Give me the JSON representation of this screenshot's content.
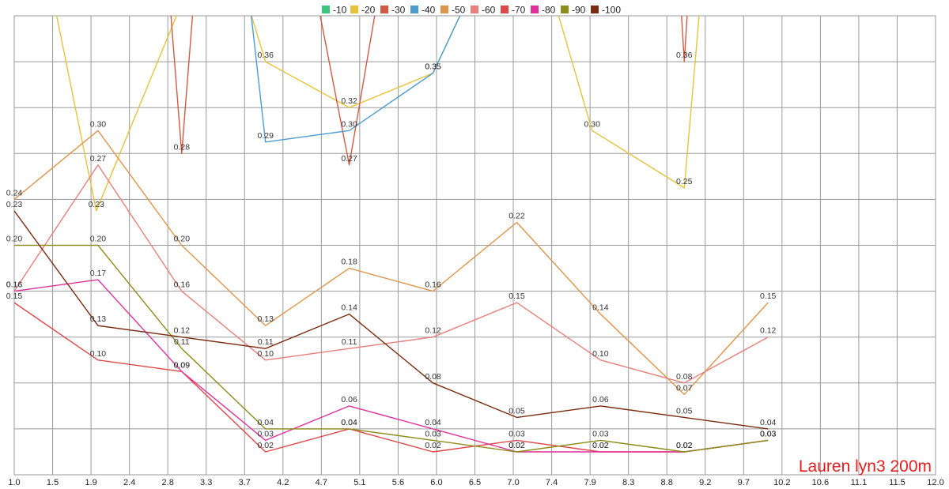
{
  "chart_data": {
    "type": "line",
    "annotation": "Lauren lyn3 200m",
    "x_ticks": [
      "1.0",
      "1.5",
      "1.9",
      "2.4",
      "2.8",
      "3.3",
      "3.7",
      "4.2",
      "4.7",
      "5.1",
      "5.6",
      "6.0",
      "6.5",
      "7.0",
      "7.4",
      "7.9",
      "8.3",
      "8.8",
      "9.2",
      "9.7",
      "10.2",
      "10.6",
      "11.1",
      "11.5",
      "12.0"
    ],
    "xlim": [
      1.0,
      12.0
    ],
    "ylim": [
      0.0,
      0.4
    ],
    "grid": true,
    "legend_position": "top",
    "series": [
      {
        "name": "-10",
        "color": "#3cc47c",
        "x": [],
        "y": [],
        "labels": []
      },
      {
        "name": "-20",
        "color": "#e8c23a",
        "x": [
          1.45,
          1.98,
          3.05,
          3.75,
          4.0,
          5.0,
          6.0,
          6.45,
          7.42,
          7.9,
          9.0,
          9.2
        ],
        "y": [
          0.42,
          0.23,
          0.42,
          0.42,
          0.36,
          0.32,
          0.35,
          0.42,
          0.42,
          0.3,
          0.25,
          0.42
        ],
        "labels": [
          "",
          "0.23",
          "",
          "",
          "0.36",
          "0.32",
          "0.35",
          "",
          "",
          "0.30",
          "0.25",
          ""
        ]
      },
      {
        "name": "-30",
        "color": "#d05a44",
        "x": [
          2.85,
          3.0,
          3.15,
          4.6,
          5.0,
          5.35,
          8.95,
          9.0,
          9.05
        ],
        "y": [
          0.42,
          0.28,
          0.42,
          0.42,
          0.27,
          0.42,
          0.42,
          0.36,
          0.42
        ],
        "labels": [
          "",
          "0.28",
          "",
          "",
          "0.27",
          "",
          "",
          "0.36",
          ""
        ]
      },
      {
        "name": "-40",
        "color": "#4b9bd1",
        "x": [
          3.8,
          4.0,
          5.0,
          6.0,
          6.45
        ],
        "y": [
          0.42,
          0.29,
          0.3,
          0.35,
          0.42
        ],
        "labels": [
          "",
          "0.29",
          "0.30",
          "0.35",
          ""
        ]
      },
      {
        "name": "-50",
        "color": "#e0944a",
        "x": [
          1,
          2,
          3,
          4,
          5,
          6,
          7,
          8,
          9,
          10
        ],
        "y": [
          0.24,
          0.3,
          0.2,
          0.13,
          0.18,
          0.16,
          0.22,
          0.14,
          0.07,
          0.15
        ],
        "labels": [
          "0.24",
          "0.30",
          "0.20",
          "0.13",
          "0.18",
          "0.16",
          "0.22",
          "0.14",
          "0.07",
          "0.15"
        ]
      },
      {
        "name": "-60",
        "color": "#e87f7a",
        "x": [
          1,
          2,
          3,
          4,
          5,
          6,
          7,
          8,
          9,
          10
        ],
        "y": [
          0.16,
          0.27,
          0.16,
          0.1,
          0.11,
          0.12,
          0.15,
          0.1,
          0.08,
          0.12
        ],
        "labels": [
          "0.16",
          "0.27",
          "0.16",
          "0.10",
          "0.11",
          "0.12",
          "0.15",
          "0.10",
          "0.08",
          "0.12"
        ]
      },
      {
        "name": "-70",
        "color": "#e04848",
        "x": [
          1,
          2,
          3,
          4,
          5,
          6,
          7,
          8,
          9,
          10
        ],
        "y": [
          0.15,
          0.1,
          0.09,
          0.02,
          0.04,
          0.02,
          0.03,
          0.02,
          0.02,
          0.03
        ],
        "labels": [
          "0.15",
          "0.10",
          "0.09",
          "0.02",
          "0.04",
          "0.02",
          "0.03",
          "0.02",
          "0.02",
          "0.03"
        ]
      },
      {
        "name": "-80",
        "color": "#e0309a",
        "x": [
          1,
          2,
          3,
          4,
          5,
          6,
          7,
          8,
          9,
          10
        ],
        "y": [
          0.16,
          0.17,
          0.09,
          0.03,
          0.06,
          0.04,
          0.02,
          0.02,
          0.02,
          0.03
        ],
        "labels": [
          "0.16",
          "0.17",
          "0.09",
          "0.03",
          "0.06",
          "0.04",
          "0.02",
          "0.02",
          "0.02",
          "0.03"
        ]
      },
      {
        "name": "-90",
        "color": "#8c8c1a",
        "x": [
          1,
          2,
          3,
          4,
          5,
          6,
          7,
          8,
          9,
          10
        ],
        "y": [
          0.2,
          0.2,
          0.11,
          0.04,
          0.04,
          0.03,
          0.02,
          0.03,
          0.02,
          0.03
        ],
        "labels": [
          "0.20",
          "0.20",
          "0.11",
          "0.04",
          "0.04",
          "0.03",
          "0.02",
          "0.03",
          "0.02",
          "0.03"
        ]
      },
      {
        "name": "-100",
        "color": "#7a2c10",
        "x": [
          1,
          2,
          3,
          4,
          5,
          6,
          7,
          8,
          9,
          10
        ],
        "y": [
          0.23,
          0.13,
          0.12,
          0.11,
          0.14,
          0.08,
          0.05,
          0.06,
          0.05,
          0.04
        ],
        "labels": [
          "0.23",
          "0.13",
          "0.12",
          "0.11",
          "0.14",
          "0.08",
          "0.05",
          "0.06",
          "0.05",
          "0.04"
        ]
      }
    ]
  }
}
